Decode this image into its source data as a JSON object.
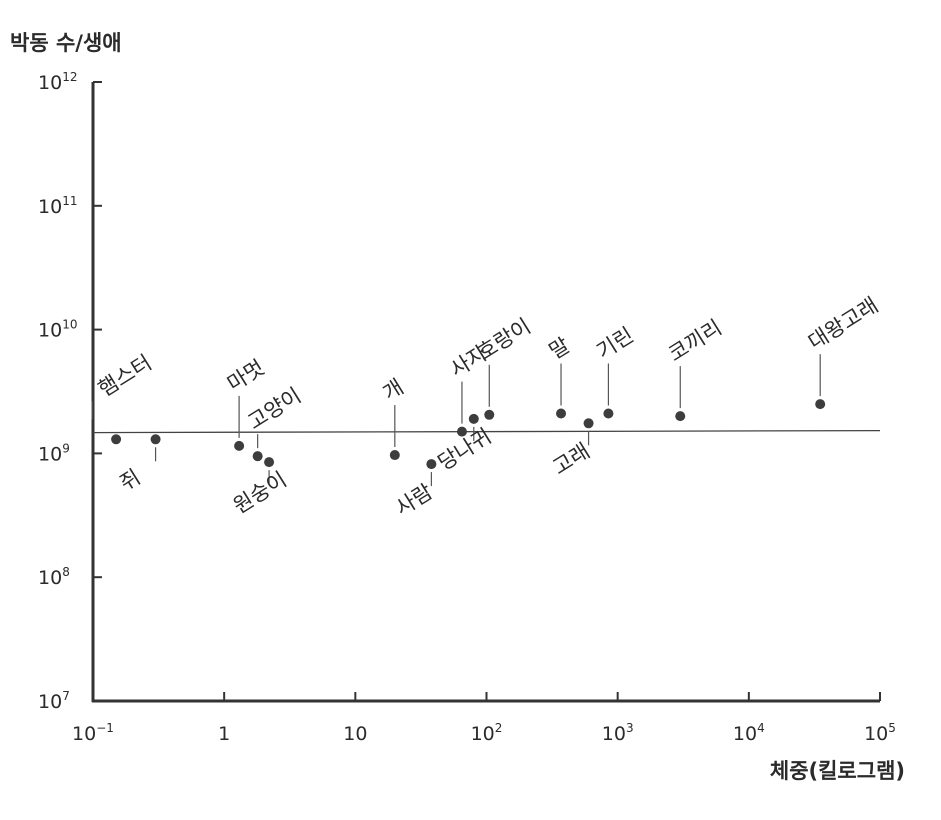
{
  "chart_data": {
    "type": "scatter",
    "title": "",
    "ylabel": "박동 수/생애",
    "xlabel": "체중(킬로그램)",
    "xscale": "log",
    "yscale": "log",
    "xlim": [
      0.1,
      100000
    ],
    "ylim": [
      10000000,
      1000000000000
    ],
    "x_ticks": [
      {
        "base": "10",
        "exp": "−1"
      },
      {
        "base": "1",
        "exp": ""
      },
      {
        "base": "10",
        "exp": ""
      },
      {
        "base": "10",
        "exp": "2"
      },
      {
        "base": "10",
        "exp": "3"
      },
      {
        "base": "10",
        "exp": "4"
      },
      {
        "base": "10",
        "exp": "5"
      }
    ],
    "y_ticks": [
      {
        "base": "10",
        "exp": "7"
      },
      {
        "base": "10",
        "exp": "8"
      },
      {
        "base": "10",
        "exp": "9"
      },
      {
        "base": "10",
        "exp": "10"
      },
      {
        "base": "10",
        "exp": "11"
      },
      {
        "base": "10",
        "exp": "12"
      }
    ],
    "trend_line": {
      "y": 1500000000
    },
    "points": [
      {
        "label": "햄스터",
        "x": 0.15,
        "y": 1300000000,
        "label_pos": "above-left"
      },
      {
        "label": "쥐",
        "x": 0.3,
        "y": 1300000000,
        "label_pos": "below"
      },
      {
        "label": "마멋",
        "x": 1.3,
        "y": 1150000000,
        "label_pos": "above"
      },
      {
        "label": "고양이",
        "x": 1.8,
        "y": 950000000,
        "label_pos": "above-right"
      },
      {
        "label": "원숭이",
        "x": 2.2,
        "y": 850000000,
        "label_pos": "below"
      },
      {
        "label": "개",
        "x": 20,
        "y": 970000000,
        "label_pos": "above"
      },
      {
        "label": "사람",
        "x": 38,
        "y": 820000000,
        "label_pos": "below"
      },
      {
        "label": "사자",
        "x": 65,
        "y": 1500000000,
        "label_pos": "above"
      },
      {
        "label": "당나귀",
        "x": 80,
        "y": 1900000000,
        "label_pos": "below"
      },
      {
        "label": "호랑이",
        "x": 105,
        "y": 2050000000,
        "label_pos": "above"
      },
      {
        "label": "말",
        "x": 370,
        "y": 2100000000,
        "label_pos": "above"
      },
      {
        "label": "고래",
        "x": 600,
        "y": 1750000000,
        "label_pos": "below"
      },
      {
        "label": "기린",
        "x": 850,
        "y": 2100000000,
        "label_pos": "above"
      },
      {
        "label": "코끼리",
        "x": 3000,
        "y": 2000000000,
        "label_pos": "above"
      },
      {
        "label": "대왕고래",
        "x": 35000,
        "y": 2500000000,
        "label_pos": "above"
      }
    ]
  }
}
